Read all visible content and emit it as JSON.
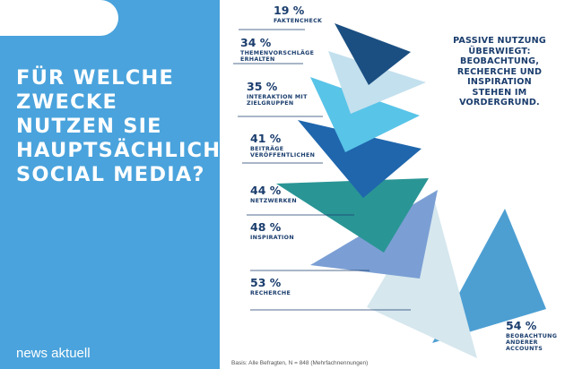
{
  "headline": [
    "FÜR WELCHE",
    "ZWECKE",
    "NUTZEN SIE",
    "HAUPTSÄCHLICH",
    "SOCIAL MEDIA?"
  ],
  "brand": "news aktuell",
  "callout": [
    "PASSIVE NUTZUNG",
    "ÜBERWIEGT:",
    "BEOBACHTUNG,",
    "RECHERCHE UND",
    "INSPIRATION",
    "STEHEN IM",
    "VORDERGRUND."
  ],
  "footnote": "Basis: Alle Befragten, N = 848 (Mehrfachnennungen)",
  "chart_data": {
    "type": "bar",
    "categories": [
      "FAKTENCHECK",
      "THEMENVORSCHLÄGE ERHALTEN",
      "INTERAKTION MIT ZIELGRUPPEN",
      "BEITRÄGE VERÖFFENTLICHEN",
      "NETZWERKEN",
      "INSPIRATION",
      "RECHERCHE",
      "BEOBACHTUNG ANDERER ACCOUNTS"
    ],
    "values": [
      19,
      34,
      35,
      41,
      44,
      48,
      53,
      54
    ],
    "value_labels": [
      "19 %",
      "34 %",
      "35 %",
      "41 %",
      "44 %",
      "48 %",
      "53 %",
      "54 %"
    ],
    "label_lines": [
      [
        "FAKTENCHECK"
      ],
      [
        "THEMENVORSCHLÄGE",
        "ERHALTEN"
      ],
      [
        "INTERAKTION MIT",
        "ZIELGRUPPEN"
      ],
      [
        "BEITRÄGE",
        "VERÖFFENTLICHEN"
      ],
      [
        "NETZWERKEN"
      ],
      [
        "INSPIRATION"
      ],
      [
        "RECHERCHE"
      ],
      [
        "BEOBACHTUNG",
        "ANDERER",
        "ACCOUNTS"
      ]
    ],
    "unit": "%",
    "colors": [
      "#1b4f82",
      "#c3e0ee",
      "#58c4e8",
      "#1f66ad",
      "#2a9595",
      "#7b9fd4",
      "#d6e7ee",
      "#4d9fd2"
    ]
  }
}
